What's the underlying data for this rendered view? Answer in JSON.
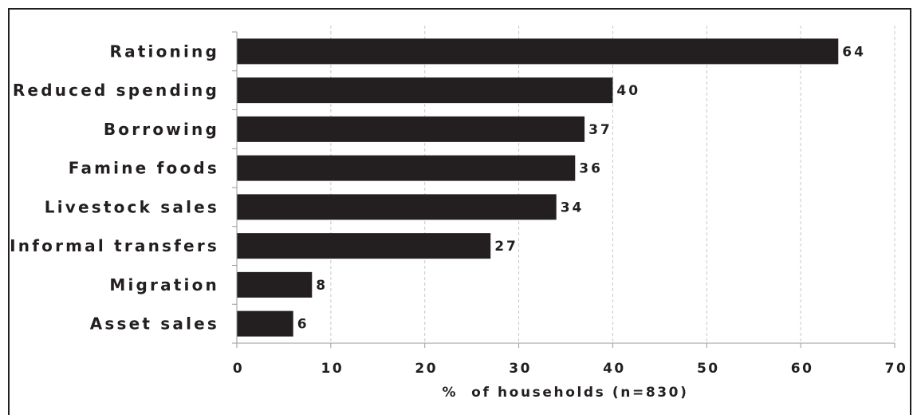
{
  "chart_data": {
    "type": "bar",
    "orientation": "horizontal",
    "categories": [
      "Rationing",
      "Reduced spending",
      "Borrowing",
      "Famine foods",
      "Livestock sales",
      "Informal transfers",
      "Migration",
      "Asset sales"
    ],
    "values": [
      64,
      40,
      37,
      36,
      34,
      27,
      8,
      6
    ],
    "value_labels": [
      "64",
      "40",
      "37",
      "36",
      "34",
      "27",
      "8",
      "6"
    ],
    "xlim": [
      0,
      70
    ],
    "xticks": [
      "0",
      "10",
      "20",
      "30",
      "40",
      "50",
      "60",
      "70"
    ],
    "xlabel": "%  of households (n=830)",
    "grid": "vertical dashed",
    "bar_color": "#231f20"
  }
}
